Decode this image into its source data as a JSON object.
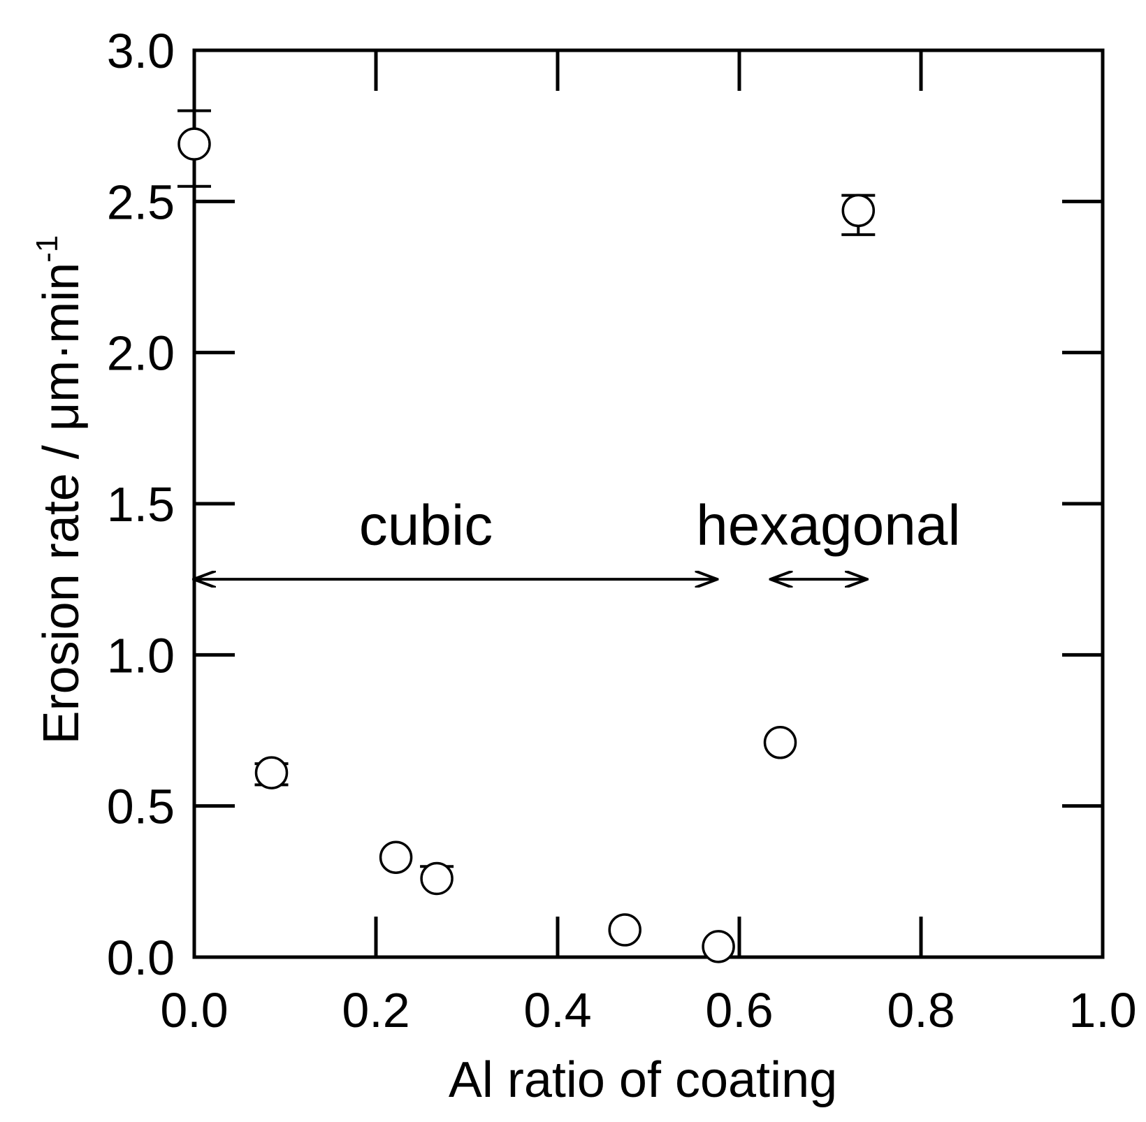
{
  "chart_data": {
    "type": "scatter",
    "title": "",
    "xlabel": "Al ratio of coating",
    "ylabel": "Erosion rate / μm·min",
    "ylabel_superscript": "-1",
    "xlim": [
      0.0,
      1.0
    ],
    "ylim": [
      0.0,
      3.0
    ],
    "x_tick_labels": [
      "0.0",
      "0.2",
      "0.4",
      "0.6",
      "0.8",
      "1.0"
    ],
    "y_tick_labels": [
      "0.0",
      "0.5",
      "1.0",
      "1.5",
      "2.0",
      "2.5",
      "3.0"
    ],
    "grid": false,
    "legend": "none",
    "series": [
      {
        "marker": "open-circle",
        "points": [
          {
            "x": 0.0,
            "y": 2.69,
            "err_low": 2.55,
            "err_high": 2.8
          },
          {
            "x": 0.085,
            "y": 0.61,
            "err_low": 0.57,
            "err_high": 0.64
          },
          {
            "x": 0.222,
            "y": 0.33,
            "err_low": null,
            "err_high": null
          },
          {
            "x": 0.267,
            "y": 0.26,
            "err_low": null,
            "err_high": 0.3
          },
          {
            "x": 0.474,
            "y": 0.09,
            "err_low": null,
            "err_high": null
          },
          {
            "x": 0.577,
            "y": 0.035,
            "err_low": null,
            "err_high": null
          },
          {
            "x": 0.645,
            "y": 0.71,
            "err_low": null,
            "err_high": null
          },
          {
            "x": 0.731,
            "y": 2.47,
            "err_low": 2.39,
            "err_high": 2.52
          }
        ]
      }
    ],
    "annotations": [
      {
        "text": "cubic",
        "x": 0.255,
        "y": 1.43,
        "arrow_from": 0.0,
        "arrow_to": 0.575,
        "arrow_y": 1.25
      },
      {
        "text": "hexagonal",
        "x": 0.698,
        "y": 1.43,
        "arrow_from": 0.635,
        "arrow_to": 0.74,
        "arrow_y": 1.25
      }
    ]
  }
}
